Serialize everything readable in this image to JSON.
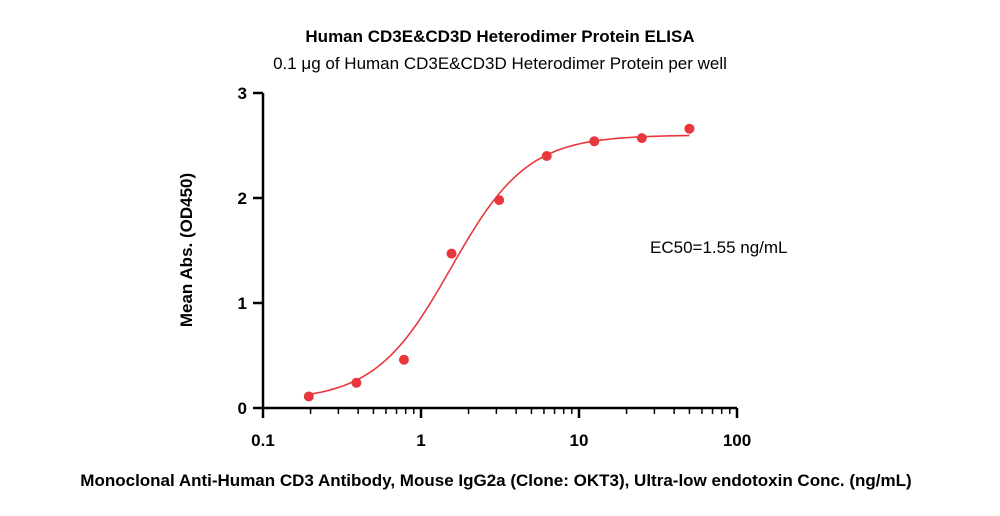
{
  "chart_data": {
    "type": "scatter",
    "title": "Human CD3E&CD3D Heterodimer Protein ELISA",
    "subtitle": "0.1 μg of Human CD3E&CD3D Heterodimer Protein per well",
    "xlabel": "Monoclonal Anti-Human CD3 Antibody, Mouse IgG2a (Clone: OKT3), Ultra-low endotoxin Conc. (ng/mL)",
    "ylabel": "Mean Abs. (OD450)",
    "x_scale": "log",
    "xlim": [
      0.1,
      100
    ],
    "ylim": [
      0,
      3
    ],
    "x_ticks": [
      "0.1",
      "1",
      "10",
      "100"
    ],
    "y_ticks": [
      "0",
      "1",
      "2",
      "3"
    ],
    "grid": false,
    "series": [
      {
        "x": [
          0.195,
          0.39,
          0.78,
          1.56,
          3.125,
          6.25,
          12.5,
          25,
          50
        ],
        "y": [
          0.11,
          0.24,
          0.46,
          1.47,
          1.98,
          2.4,
          2.54,
          2.57,
          2.66
        ],
        "color": "#e8383d",
        "fit": {
          "model": "4PL",
          "bottom": 0.07,
          "top": 2.6,
          "ec50": 1.55,
          "hill": 1.8
        }
      }
    ],
    "annotation": "EC50=1.55 ng/mL"
  }
}
